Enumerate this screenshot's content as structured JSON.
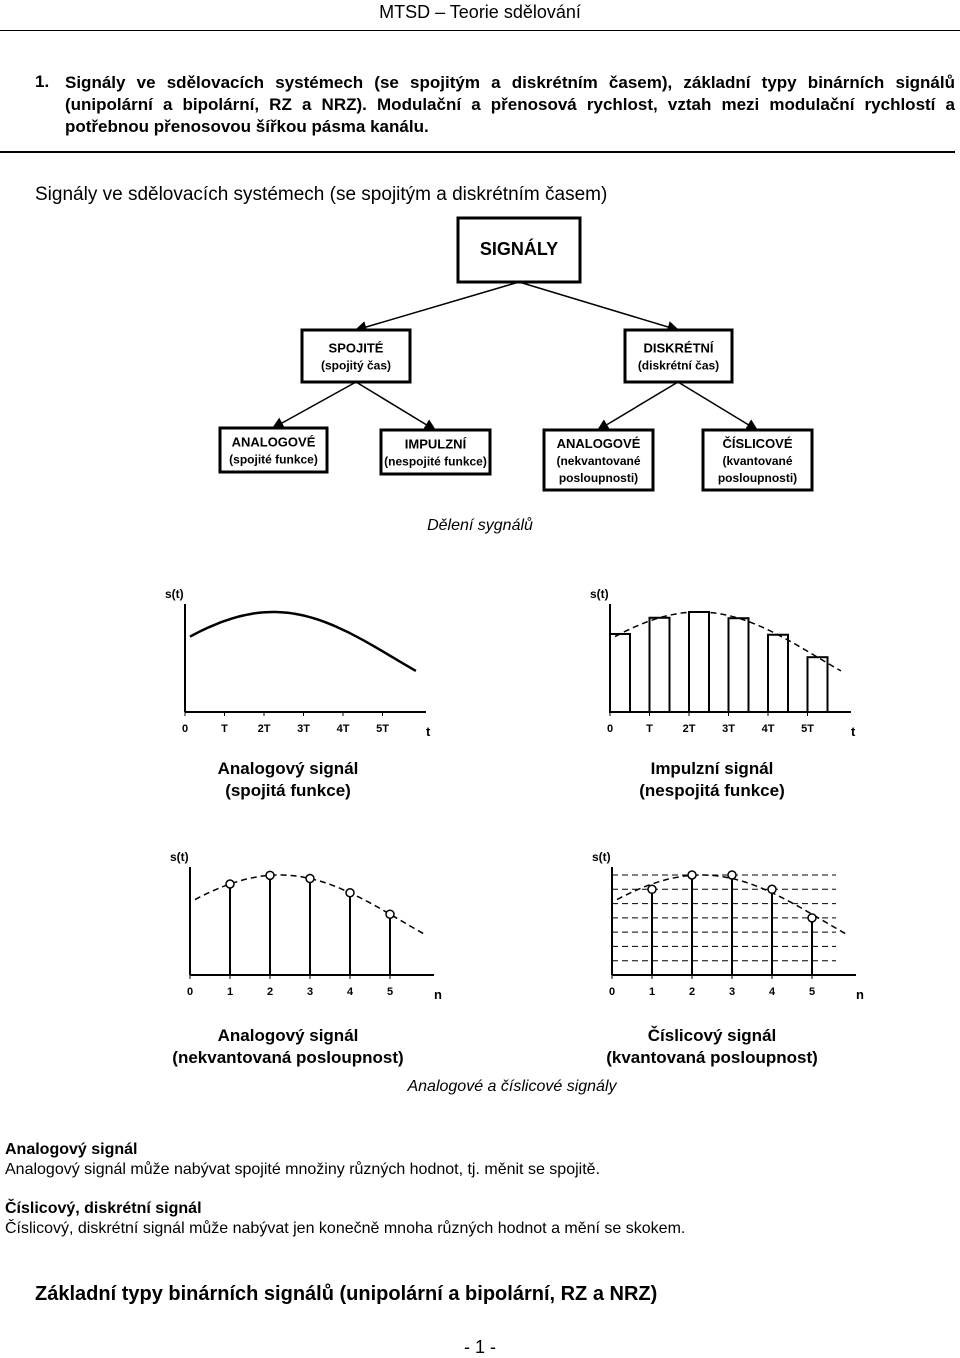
{
  "header": "MTSD – Teorie sdělování",
  "section1": {
    "number": "1.",
    "text": "Signály ve sdělovacích systémech (se spojitým a diskrétním časem), základní typy binárních signálů (unipolární a bipolární, RZ a NRZ). Modulační a přenosová rychlost, vztah mezi modulační rychlostí a potřebnou přenosovou šířkou pásma kanálu."
  },
  "subheading": "Signály ve sdělovacích systémech (se spojitým a diskrétním časem)",
  "tree": {
    "root": "SIGNÁLY",
    "level1": [
      [
        "SPOJITÉ",
        "(spojitý čas)"
      ],
      [
        "DISKRÉTNÍ",
        "(diskrétní čas)"
      ]
    ],
    "level2": [
      [
        "ANALOGOVÉ",
        "(spojité funkce)"
      ],
      [
        "IMPULZNÍ",
        "(nespojité funkce)"
      ],
      [
        "ANALOGOVÉ",
        "(nekvantované",
        "posloupnosti)"
      ],
      [
        "ČÍSLICOVÉ",
        "(kvantované",
        "posloupnosti)"
      ]
    ]
  },
  "caption1": "Dělení sygnálů",
  "panels": [
    {
      "ylabel": "s(t)",
      "xticks": [
        "0",
        "T",
        "2T",
        "3T",
        "4T",
        "5T"
      ],
      "xlabel": "t",
      "title": [
        "Analogový signál",
        "(spojitá funkce)"
      ]
    },
    {
      "ylabel": "s(t)",
      "xticks": [
        "0",
        "T",
        "2T",
        "3T",
        "4T",
        "5T"
      ],
      "xlabel": "t",
      "title": [
        "Impulzní signál",
        "(nespojitá funkce)"
      ]
    },
    {
      "ylabel": "s(t)",
      "xticks": [
        "0",
        "1",
        "2",
        "3",
        "4",
        "5"
      ],
      "xlabel": "n",
      "title": [
        "Analogový signál",
        "(nekvantovaná posloupnost)"
      ]
    },
    {
      "ylabel": "s(t)",
      "xticks": [
        "0",
        "1",
        "2",
        "3",
        "4",
        "5"
      ],
      "xlabel": "n",
      "title": [
        "Číslicový signál",
        "(kvantovaná posloupnost)"
      ]
    }
  ],
  "caption2": "Analogové a číslicové signály",
  "definitions": [
    {
      "title": "Analogový signál",
      "text": "Analogový signál může nabývat spojité množiny různých hodnot, tj. měnit se spojitě."
    },
    {
      "title": "Číslicový, diskrétní signál",
      "text": "Číslicový, diskrétní signál může nabývat jen konečně mnoha různých hodnot a mění se skokem."
    }
  ],
  "section2": "Základní typy binárních signálů (unipolární a bipolární, RZ a NRZ)",
  "footer": "- 1 -"
}
